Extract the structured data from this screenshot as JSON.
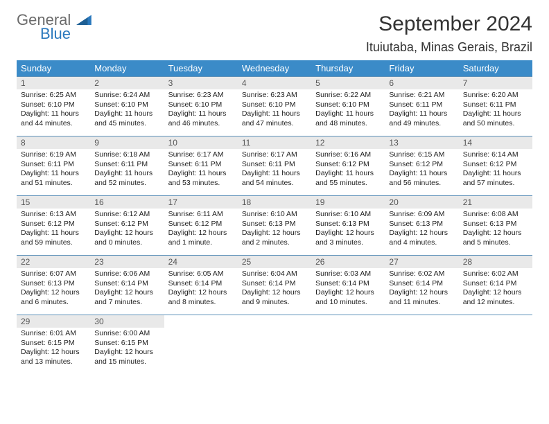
{
  "logo": {
    "word1": "General",
    "word2": "Blue"
  },
  "title": "September 2024",
  "location": "Ituiutaba, Minas Gerais, Brazil",
  "colors": {
    "header_bg": "#3b8bc8",
    "header_text": "#ffffff",
    "daynum_bg": "#e9e9e9",
    "row_border": "#5a8fb8",
    "logo_gray": "#6b6b6b",
    "logo_blue": "#2a78bd"
  },
  "weekdays": [
    "Sunday",
    "Monday",
    "Tuesday",
    "Wednesday",
    "Thursday",
    "Friday",
    "Saturday"
  ],
  "weeks": [
    [
      {
        "n": "1",
        "sr": "Sunrise: 6:25 AM",
        "ss": "Sunset: 6:10 PM",
        "dl": "Daylight: 11 hours and 44 minutes."
      },
      {
        "n": "2",
        "sr": "Sunrise: 6:24 AM",
        "ss": "Sunset: 6:10 PM",
        "dl": "Daylight: 11 hours and 45 minutes."
      },
      {
        "n": "3",
        "sr": "Sunrise: 6:23 AM",
        "ss": "Sunset: 6:10 PM",
        "dl": "Daylight: 11 hours and 46 minutes."
      },
      {
        "n": "4",
        "sr": "Sunrise: 6:23 AM",
        "ss": "Sunset: 6:10 PM",
        "dl": "Daylight: 11 hours and 47 minutes."
      },
      {
        "n": "5",
        "sr": "Sunrise: 6:22 AM",
        "ss": "Sunset: 6:10 PM",
        "dl": "Daylight: 11 hours and 48 minutes."
      },
      {
        "n": "6",
        "sr": "Sunrise: 6:21 AM",
        "ss": "Sunset: 6:11 PM",
        "dl": "Daylight: 11 hours and 49 minutes."
      },
      {
        "n": "7",
        "sr": "Sunrise: 6:20 AM",
        "ss": "Sunset: 6:11 PM",
        "dl": "Daylight: 11 hours and 50 minutes."
      }
    ],
    [
      {
        "n": "8",
        "sr": "Sunrise: 6:19 AM",
        "ss": "Sunset: 6:11 PM",
        "dl": "Daylight: 11 hours and 51 minutes."
      },
      {
        "n": "9",
        "sr": "Sunrise: 6:18 AM",
        "ss": "Sunset: 6:11 PM",
        "dl": "Daylight: 11 hours and 52 minutes."
      },
      {
        "n": "10",
        "sr": "Sunrise: 6:17 AM",
        "ss": "Sunset: 6:11 PM",
        "dl": "Daylight: 11 hours and 53 minutes."
      },
      {
        "n": "11",
        "sr": "Sunrise: 6:17 AM",
        "ss": "Sunset: 6:11 PM",
        "dl": "Daylight: 11 hours and 54 minutes."
      },
      {
        "n": "12",
        "sr": "Sunrise: 6:16 AM",
        "ss": "Sunset: 6:12 PM",
        "dl": "Daylight: 11 hours and 55 minutes."
      },
      {
        "n": "13",
        "sr": "Sunrise: 6:15 AM",
        "ss": "Sunset: 6:12 PM",
        "dl": "Daylight: 11 hours and 56 minutes."
      },
      {
        "n": "14",
        "sr": "Sunrise: 6:14 AM",
        "ss": "Sunset: 6:12 PM",
        "dl": "Daylight: 11 hours and 57 minutes."
      }
    ],
    [
      {
        "n": "15",
        "sr": "Sunrise: 6:13 AM",
        "ss": "Sunset: 6:12 PM",
        "dl": "Daylight: 11 hours and 59 minutes."
      },
      {
        "n": "16",
        "sr": "Sunrise: 6:12 AM",
        "ss": "Sunset: 6:12 PM",
        "dl": "Daylight: 12 hours and 0 minutes."
      },
      {
        "n": "17",
        "sr": "Sunrise: 6:11 AM",
        "ss": "Sunset: 6:12 PM",
        "dl": "Daylight: 12 hours and 1 minute."
      },
      {
        "n": "18",
        "sr": "Sunrise: 6:10 AM",
        "ss": "Sunset: 6:13 PM",
        "dl": "Daylight: 12 hours and 2 minutes."
      },
      {
        "n": "19",
        "sr": "Sunrise: 6:10 AM",
        "ss": "Sunset: 6:13 PM",
        "dl": "Daylight: 12 hours and 3 minutes."
      },
      {
        "n": "20",
        "sr": "Sunrise: 6:09 AM",
        "ss": "Sunset: 6:13 PM",
        "dl": "Daylight: 12 hours and 4 minutes."
      },
      {
        "n": "21",
        "sr": "Sunrise: 6:08 AM",
        "ss": "Sunset: 6:13 PM",
        "dl": "Daylight: 12 hours and 5 minutes."
      }
    ],
    [
      {
        "n": "22",
        "sr": "Sunrise: 6:07 AM",
        "ss": "Sunset: 6:13 PM",
        "dl": "Daylight: 12 hours and 6 minutes."
      },
      {
        "n": "23",
        "sr": "Sunrise: 6:06 AM",
        "ss": "Sunset: 6:14 PM",
        "dl": "Daylight: 12 hours and 7 minutes."
      },
      {
        "n": "24",
        "sr": "Sunrise: 6:05 AM",
        "ss": "Sunset: 6:14 PM",
        "dl": "Daylight: 12 hours and 8 minutes."
      },
      {
        "n": "25",
        "sr": "Sunrise: 6:04 AM",
        "ss": "Sunset: 6:14 PM",
        "dl": "Daylight: 12 hours and 9 minutes."
      },
      {
        "n": "26",
        "sr": "Sunrise: 6:03 AM",
        "ss": "Sunset: 6:14 PM",
        "dl": "Daylight: 12 hours and 10 minutes."
      },
      {
        "n": "27",
        "sr": "Sunrise: 6:02 AM",
        "ss": "Sunset: 6:14 PM",
        "dl": "Daylight: 12 hours and 11 minutes."
      },
      {
        "n": "28",
        "sr": "Sunrise: 6:02 AM",
        "ss": "Sunset: 6:14 PM",
        "dl": "Daylight: 12 hours and 12 minutes."
      }
    ],
    [
      {
        "n": "29",
        "sr": "Sunrise: 6:01 AM",
        "ss": "Sunset: 6:15 PM",
        "dl": "Daylight: 12 hours and 13 minutes."
      },
      {
        "n": "30",
        "sr": "Sunrise: 6:00 AM",
        "ss": "Sunset: 6:15 PM",
        "dl": "Daylight: 12 hours and 15 minutes."
      },
      null,
      null,
      null,
      null,
      null
    ]
  ]
}
